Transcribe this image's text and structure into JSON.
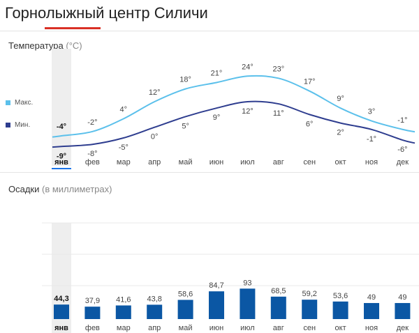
{
  "page": {
    "title": "Горнолыжный центр Силичи"
  },
  "temperature": {
    "title": "Температура",
    "unit": "(°C)",
    "legend": {
      "max_label": "Макс.",
      "min_label": "Мин."
    },
    "colors": {
      "max": "#5bc0eb",
      "min": "#2e3d8f"
    }
  },
  "precipitation": {
    "title": "Осадки",
    "unit": "(в миллиметрах)",
    "colors": {
      "bar": "#0b57a4"
    }
  },
  "selected_month": "янв",
  "chart_data": [
    {
      "type": "line",
      "categories": [
        "янв",
        "фев",
        "мар",
        "апр",
        "май",
        "июн",
        "июл",
        "авг",
        "сен",
        "окт",
        "ноя",
        "дек"
      ],
      "series": [
        {
          "name": "Макс.",
          "values": [
            -4,
            -2,
            4,
            12,
            18,
            21,
            24,
            23,
            17,
            9,
            3,
            -1
          ],
          "labels": [
            "-4°",
            "-2°",
            "4°",
            "12°",
            "18°",
            "21°",
            "24°",
            "23°",
            "17°",
            "9°",
            "3°",
            "-1°"
          ]
        },
        {
          "name": "Мин.",
          "values": [
            -9,
            -8,
            -5,
            0,
            5,
            9,
            12,
            11,
            6,
            2,
            -1,
            -6
          ],
          "labels": [
            "-9°",
            "-8°",
            "-5°",
            "0°",
            "5°",
            "9°",
            "12°",
            "11°",
            "6°",
            "2°",
            "-1°",
            "-6°"
          ]
        }
      ]
    },
    {
      "type": "bar",
      "categories": [
        "янв",
        "фев",
        "мар",
        "апр",
        "май",
        "июн",
        "июл",
        "авг",
        "сен",
        "окт",
        "ноя",
        "дек"
      ],
      "values": [
        44.3,
        37.9,
        41.6,
        43.8,
        58.6,
        84.7,
        93,
        68.5,
        59.2,
        53.6,
        49,
        49
      ],
      "labels": [
        "44,3",
        "37,9",
        "41,6",
        "43,8",
        "58,6",
        "84,7",
        "93",
        "68,5",
        "59,2",
        "53,6",
        "49",
        "49"
      ],
      "grid": true
    }
  ]
}
